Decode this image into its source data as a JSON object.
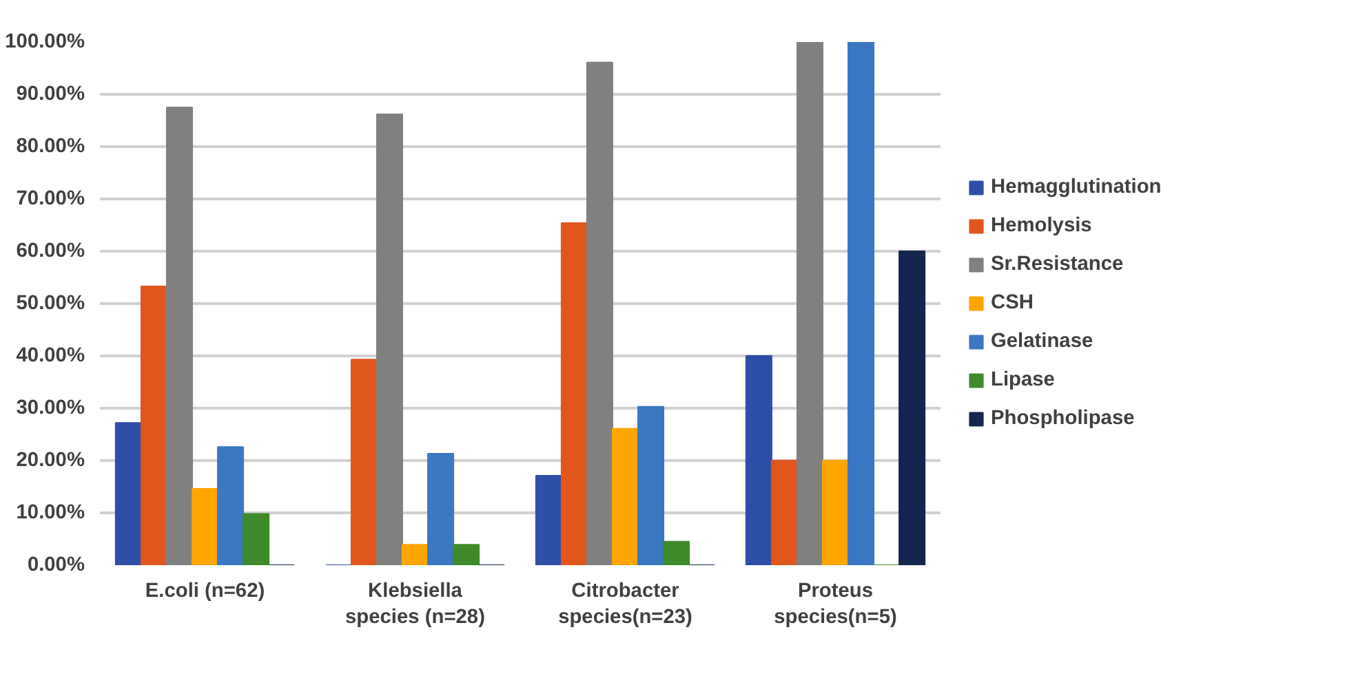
{
  "chart_data": {
    "type": "bar",
    "categories": [
      "E.coli (n=62)",
      "Klebsiella\nspecies (n=28)",
      "Citrobacter\nspecies(n=23)",
      "Proteus\nspecies(n=5)"
    ],
    "series": [
      {
        "name": "Hemagglutination",
        "color": "#2e4fa8",
        "values": [
          27.2,
          0,
          17.1,
          40
        ]
      },
      {
        "name": "Hemolysis",
        "color": "#e0561b",
        "values": [
          53.3,
          39.3,
          65.4,
          20
        ]
      },
      {
        "name": "Sr.Resistance",
        "color": "#808080",
        "values": [
          87.5,
          86.2,
          96.1,
          100
        ]
      },
      {
        "name": "CSH",
        "color": "#ffa500",
        "values": [
          14.6,
          3.9,
          26.1,
          20
        ]
      },
      {
        "name": "Gelatinase",
        "color": "#3a78c4",
        "values": [
          22.6,
          21.3,
          30.3,
          100
        ]
      },
      {
        "name": "Lipase",
        "color": "#3f8a2a",
        "values": [
          9.8,
          3.9,
          4.5,
          0
        ]
      },
      {
        "name": "Phospholipase",
        "color": "#14264f",
        "values": [
          0,
          0,
          0,
          60
        ]
      }
    ],
    "ylim": [
      0,
      100
    ],
    "yticks": [
      {
        "value": 0,
        "label": "0.00%"
      },
      {
        "value": 10,
        "label": "10.00%"
      },
      {
        "value": 20,
        "label": "20.00%"
      },
      {
        "value": 30,
        "label": "30.00%"
      },
      {
        "value": 40,
        "label": "40.00%"
      },
      {
        "value": 50,
        "label": "50.00%"
      },
      {
        "value": 60,
        "label": "60.00%"
      },
      {
        "value": 70,
        "label": "70.00%"
      },
      {
        "value": 80,
        "label": "80.00%"
      },
      {
        "value": 90,
        "label": "90.00%"
      },
      {
        "value": 100,
        "label": "100.00%"
      }
    ],
    "grid": "y",
    "legend": "right"
  }
}
